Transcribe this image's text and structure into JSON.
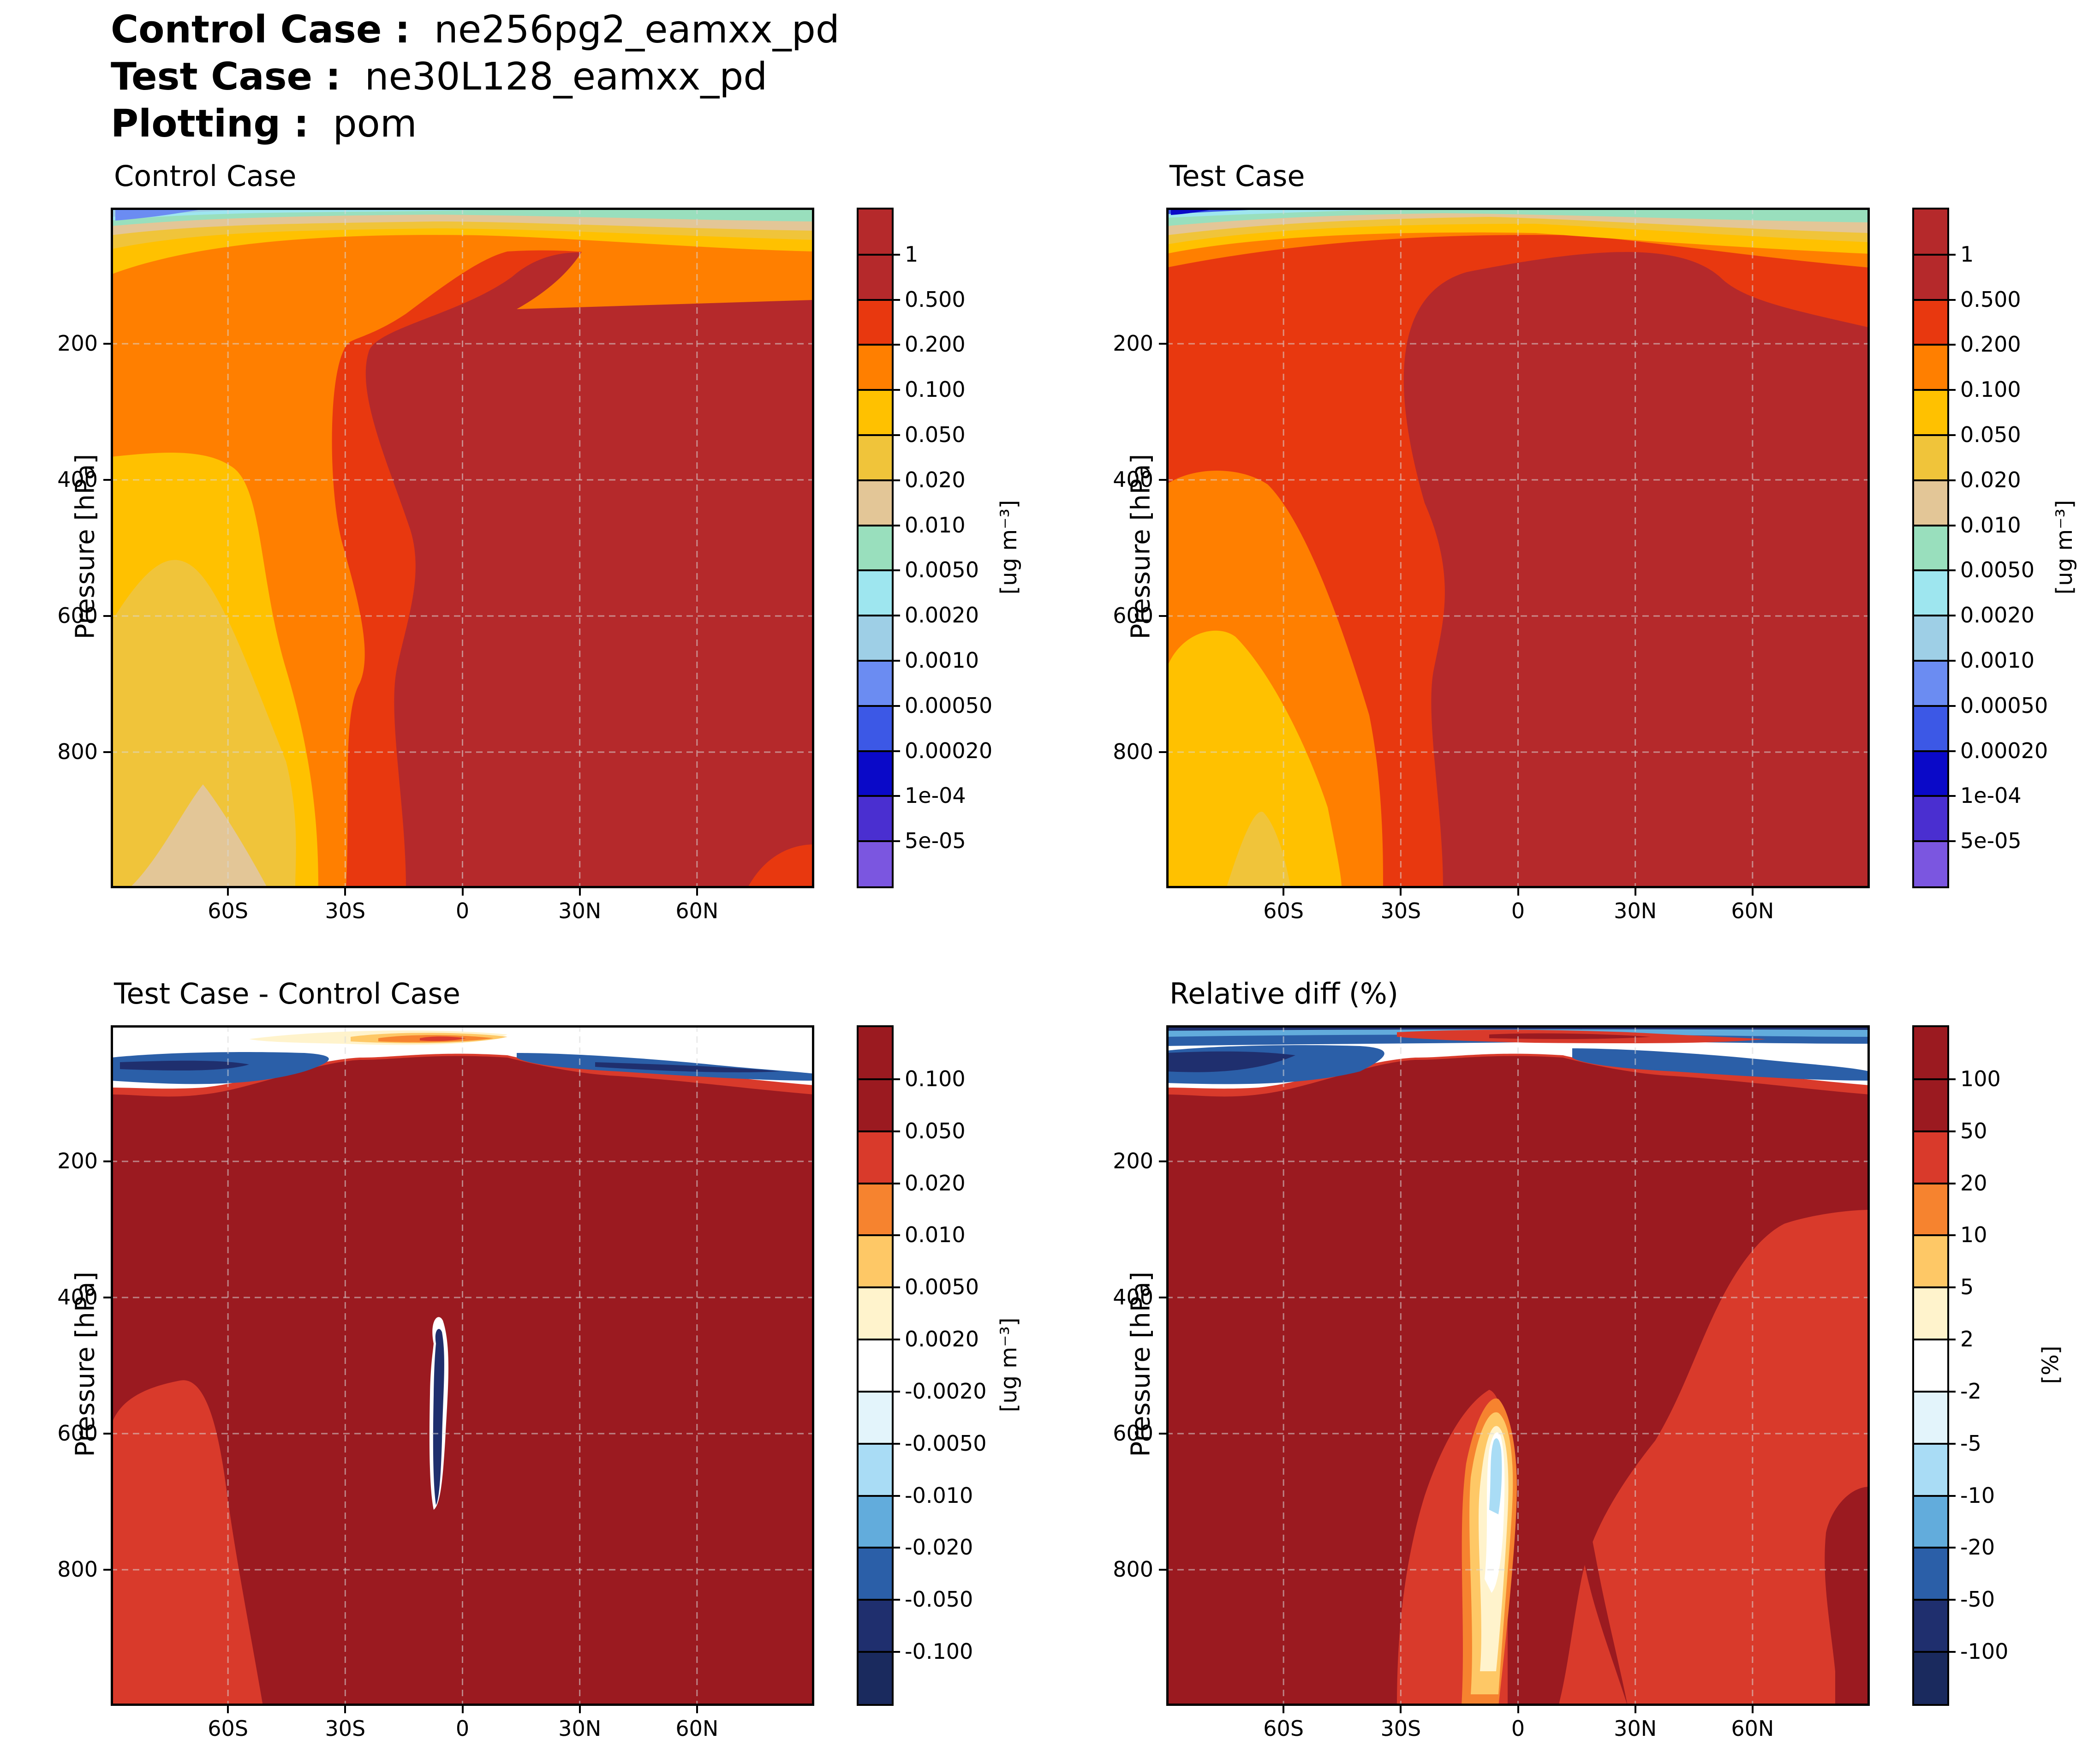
{
  "header": {
    "control_label": "Control Case :",
    "control_value": "ne256pg2_eamxx_pd",
    "test_label": "Test Case :",
    "test_value": "ne30L128_eamxx_pd",
    "plotting_label": "Plotting :",
    "plotting_value": "pom"
  },
  "chart_data": [
    {
      "type": "heatmap",
      "title": "Control Case",
      "ylabel": "Pressure [hPa]",
      "xticks": [
        "60S",
        "30S",
        "0",
        "30N",
        "60N"
      ],
      "yticks": [
        "200",
        "400",
        "600",
        "800"
      ],
      "ylim": [
        1000,
        0
      ],
      "xlim": [
        -90,
        90
      ],
      "colorbar": {
        "unit": "[ug m⁻³]",
        "labels": [
          "1",
          "0.500",
          "0.200",
          "0.100",
          "0.050",
          "0.020",
          "0.010",
          "0.0050",
          "0.0020",
          "0.0010",
          "0.00050",
          "0.00020",
          "1e-04",
          "5e-05"
        ],
        "colors": [
          "#b5292b",
          "#b5292b",
          "#e8380f",
          "#ff7f00",
          "#ffc100",
          "#f0c43a",
          "#e3c697",
          "#99dfbd",
          "#9ee6ef",
          "#9ecfe6",
          "#6b8cf2",
          "#3c58e6",
          "#0a09c8",
          "#4a2fd0",
          "#7b56e0"
        ]
      }
    },
    {
      "type": "heatmap",
      "title": "Test Case",
      "ylabel": "Pressure [hPa]",
      "xticks": [
        "60S",
        "30S",
        "0",
        "30N",
        "60N"
      ],
      "yticks": [
        "200",
        "400",
        "600",
        "800"
      ],
      "ylim": [
        1000,
        0
      ],
      "xlim": [
        -90,
        90
      ],
      "colorbar": {
        "unit": "[ug m⁻³]",
        "labels": [
          "1",
          "0.500",
          "0.200",
          "0.100",
          "0.050",
          "0.020",
          "0.010",
          "0.0050",
          "0.0020",
          "0.0010",
          "0.00050",
          "0.00020",
          "1e-04",
          "5e-05"
        ],
        "colors": [
          "#b5292b",
          "#b5292b",
          "#e8380f",
          "#ff7f00",
          "#ffc100",
          "#f0c43a",
          "#e3c697",
          "#99dfbd",
          "#9ee6ef",
          "#9ecfe6",
          "#6b8cf2",
          "#3c58e6",
          "#0a09c8",
          "#4a2fd0",
          "#7b56e0"
        ]
      }
    },
    {
      "type": "heatmap",
      "title": "Test Case - Control Case",
      "ylabel": "Pressure [hPa]",
      "xticks": [
        "60S",
        "30S",
        "0",
        "30N",
        "60N"
      ],
      "yticks": [
        "200",
        "400",
        "600",
        "800"
      ],
      "ylim": [
        1000,
        0
      ],
      "xlim": [
        -90,
        90
      ],
      "colorbar": {
        "unit": "[ug m⁻³]",
        "labels": [
          "0.100",
          "0.050",
          "0.020",
          "0.010",
          "0.0050",
          "0.0020",
          "-0.0020",
          "-0.0050",
          "-0.010",
          "-0.020",
          "-0.050",
          "-0.100"
        ],
        "colors": [
          "#9b1a20",
          "#9b1a20",
          "#d93a2b",
          "#f6832f",
          "#fec866",
          "#fff3cc",
          "#ffffff",
          "#e3f4fb",
          "#a9dcf5",
          "#62acdc",
          "#2b5fa8",
          "#1f2f6e",
          "#1a2a5e"
        ]
      }
    },
    {
      "type": "heatmap",
      "title": "Relative diff (%)",
      "ylabel": "Pressure [hPa]",
      "xticks": [
        "60S",
        "30S",
        "0",
        "30N",
        "60N"
      ],
      "yticks": [
        "200",
        "400",
        "600",
        "800"
      ],
      "ylim": [
        1000,
        0
      ],
      "xlim": [
        -90,
        90
      ],
      "colorbar": {
        "unit": "[%]",
        "labels": [
          "100",
          "50",
          "20",
          "10",
          "5",
          "2",
          "-2",
          "-5",
          "-10",
          "-20",
          "-50",
          "-100"
        ],
        "colors": [
          "#9b1a20",
          "#9b1a20",
          "#d93a2b",
          "#f6832f",
          "#fec866",
          "#fff3cc",
          "#ffffff",
          "#e3f4fb",
          "#a9dcf5",
          "#62acdc",
          "#2b5fa8",
          "#1f2f6e",
          "#1a2a5e"
        ]
      }
    }
  ]
}
